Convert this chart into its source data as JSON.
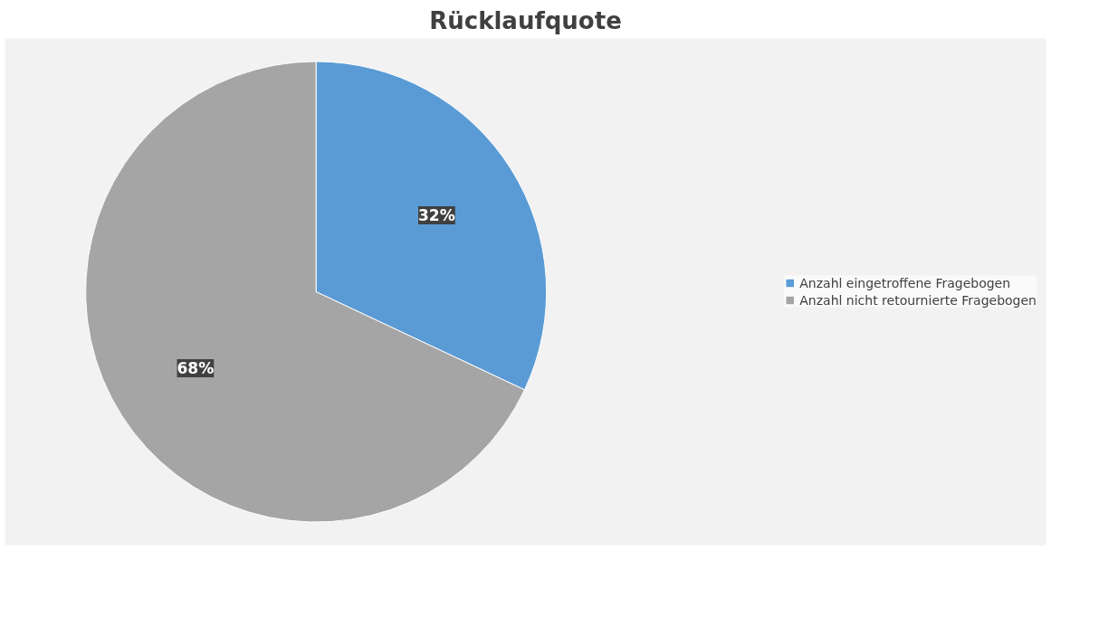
{
  "chart_data": {
    "type": "pie",
    "title": "Rücklaufquote",
    "categories": [
      "Anzahl eingetroffene Fragebogen",
      "Anzahl nicht retournierte Fragebogen"
    ],
    "values": [
      32,
      68
    ],
    "colors": [
      "#5b9bd5",
      "#a5a5a5"
    ],
    "value_labels": [
      "32%",
      "68%"
    ],
    "legend": "right"
  }
}
